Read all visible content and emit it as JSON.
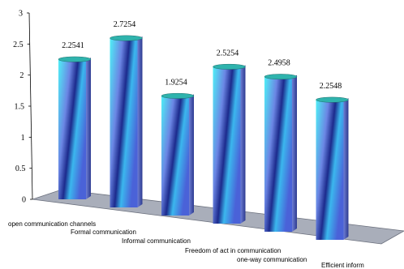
{
  "chart_data": {
    "type": "bar",
    "style": "3d-cylinder",
    "categories": [
      "open communication channels",
      "Formal communication",
      "Informal communication",
      "Freedom of act in communication",
      "one-way communication",
      "Efficient inform"
    ],
    "values": [
      2.2541,
      2.7254,
      1.9254,
      2.5254,
      2.4958,
      2.2548
    ],
    "value_labels": [
      "2.2541",
      "2.7254",
      "1.9254",
      "2.5254",
      "2.4958",
      "2.2548"
    ],
    "ylim": [
      0,
      3
    ],
    "yticks": [
      "0",
      "0.5",
      "1",
      "1.5",
      "2",
      "2.5",
      "3"
    ],
    "grid": false,
    "legend": "none",
    "colors": {
      "bar_light": "#4ff0f6",
      "bar_mid": "#6b86e4",
      "bar_dark": "#1c2a8c",
      "bar_top": "#2fb3ad",
      "floor": "#a9aeba"
    }
  }
}
